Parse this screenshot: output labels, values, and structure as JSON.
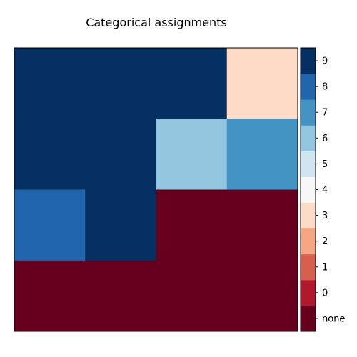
{
  "chart_data": {
    "type": "heatmap",
    "title": "Categorical assignments",
    "xlabel": "",
    "ylabel": "",
    "grid": [
      [
        9,
        9,
        9,
        3
      ],
      [
        9,
        9,
        6,
        7
      ],
      [
        8,
        9,
        "none",
        "none"
      ],
      [
        "none",
        "none",
        "none",
        "none"
      ]
    ],
    "colorbar": {
      "labels": [
        "none",
        "0",
        "1",
        "2",
        "3",
        "4",
        "5",
        "6",
        "7",
        "8",
        "9"
      ],
      "colors": [
        "#67001f",
        "#b2182b",
        "#d6604d",
        "#f4a582",
        "#fddbc7",
        "#f7f7f7",
        "#d1e5f0",
        "#92c5de",
        "#4393c3",
        "#2166ac",
        "#053061"
      ]
    },
    "axes_ticks": false
  }
}
